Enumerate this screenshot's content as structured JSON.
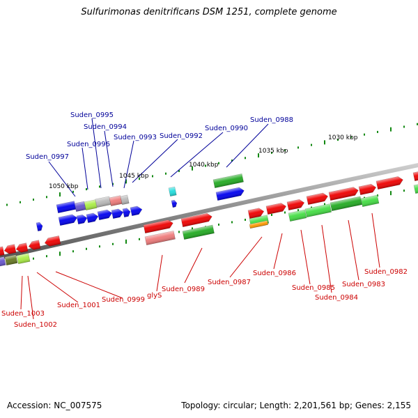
{
  "title": "Sulfurimonas denitrificans DSM 1251, complete genome",
  "footer": {
    "accession_label": "Accession:",
    "accession": "NC_007575",
    "topology_label": "Topology:",
    "topology": "circular",
    "length_label": "Length:",
    "length": "2,201,561 bp",
    "genes_label": "Genes:",
    "genes": "2,155"
  },
  "scale_labels": [
    "1030 kbp",
    "1035 kbp",
    "1040 kbp",
    "1045 kbp",
    "1050 kbp"
  ],
  "colors": {
    "backbone": "#8a8a8a",
    "forward_cds": "#ee0000",
    "forward_light": "#ee7a7a",
    "reverse_cds": "#0000ee",
    "green": "#22aa22",
    "light_green": "#44dd44",
    "lime": "#aaee44",
    "olive": "#667722",
    "purple": "#6655cc",
    "gray": "#b8b8b8",
    "cyan": "#22dddd",
    "orange": "#ff9900",
    "tick": "#118811",
    "label_top": "#000099",
    "label_bottom": "#cc0000"
  },
  "gene_labels_top": [
    "Suden_0988",
    "Suden_0990",
    "Suden_0992",
    "Suden_0993",
    "Suden_0994",
    "Suden_0995",
    "Suden_0996",
    "Suden_0997"
  ],
  "gene_labels_bottom": [
    "Suden_0982",
    "Suden_0983",
    "Suden_0984",
    "Suden_0985",
    "Suden_0986",
    "Suden_0987",
    "Suden_0989",
    "glyS",
    "Suden_0999",
    "Suden_1001",
    "Suden_1002",
    "Suden_1003"
  ]
}
